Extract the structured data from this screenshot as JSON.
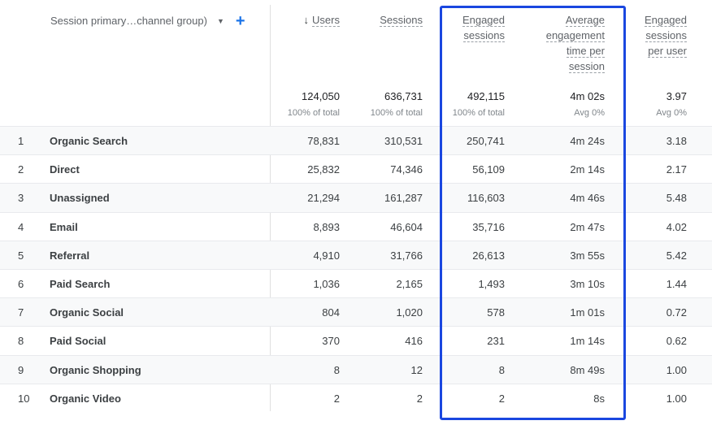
{
  "dimension_header": "Session primary…channel group)",
  "columns": [
    {
      "lines": [
        "Users"
      ],
      "sorted": true,
      "total": "124,050",
      "total_sub": "100% of total"
    },
    {
      "lines": [
        "Sessions"
      ],
      "sorted": false,
      "total": "636,731",
      "total_sub": "100% of total"
    },
    {
      "lines": [
        "Engaged",
        "sessions"
      ],
      "sorted": false,
      "total": "492,115",
      "total_sub": "100% of total"
    },
    {
      "lines": [
        "Average",
        "engagement",
        "time per",
        "session"
      ],
      "sorted": false,
      "total": "4m 02s",
      "total_sub": "Avg 0%"
    },
    {
      "lines": [
        "Engaged",
        "sessions",
        "per user"
      ],
      "sorted": false,
      "total": "3.97",
      "total_sub": "Avg 0%"
    }
  ],
  "rows": [
    {
      "index": "1",
      "name": "Organic Search",
      "values": [
        "78,831",
        "310,531",
        "250,741",
        "4m 24s",
        "3.18"
      ]
    },
    {
      "index": "2",
      "name": "Direct",
      "values": [
        "25,832",
        "74,346",
        "56,109",
        "2m 14s",
        "2.17"
      ]
    },
    {
      "index": "3",
      "name": "Unassigned",
      "values": [
        "21,294",
        "161,287",
        "116,603",
        "4m 46s",
        "5.48"
      ]
    },
    {
      "index": "4",
      "name": "Email",
      "values": [
        "8,893",
        "46,604",
        "35,716",
        "2m 47s",
        "4.02"
      ]
    },
    {
      "index": "5",
      "name": "Referral",
      "values": [
        "4,910",
        "31,766",
        "26,613",
        "3m 55s",
        "5.42"
      ]
    },
    {
      "index": "6",
      "name": "Paid Search",
      "values": [
        "1,036",
        "2,165",
        "1,493",
        "3m 10s",
        "1.44"
      ]
    },
    {
      "index": "7",
      "name": "Organic Social",
      "values": [
        "804",
        "1,020",
        "578",
        "1m 01s",
        "0.72"
      ]
    },
    {
      "index": "8",
      "name": "Paid Social",
      "values": [
        "370",
        "416",
        "231",
        "1m 14s",
        "0.62"
      ]
    },
    {
      "index": "9",
      "name": "Organic Shopping",
      "values": [
        "8",
        "12",
        "8",
        "8m 49s",
        "1.00"
      ]
    },
    {
      "index": "10",
      "name": "Organic Video",
      "values": [
        "2",
        "2",
        "2",
        "8s",
        "1.00"
      ]
    }
  ],
  "colors": {
    "accent": "#1a73e8",
    "highlight_border": "#1a47e0"
  }
}
